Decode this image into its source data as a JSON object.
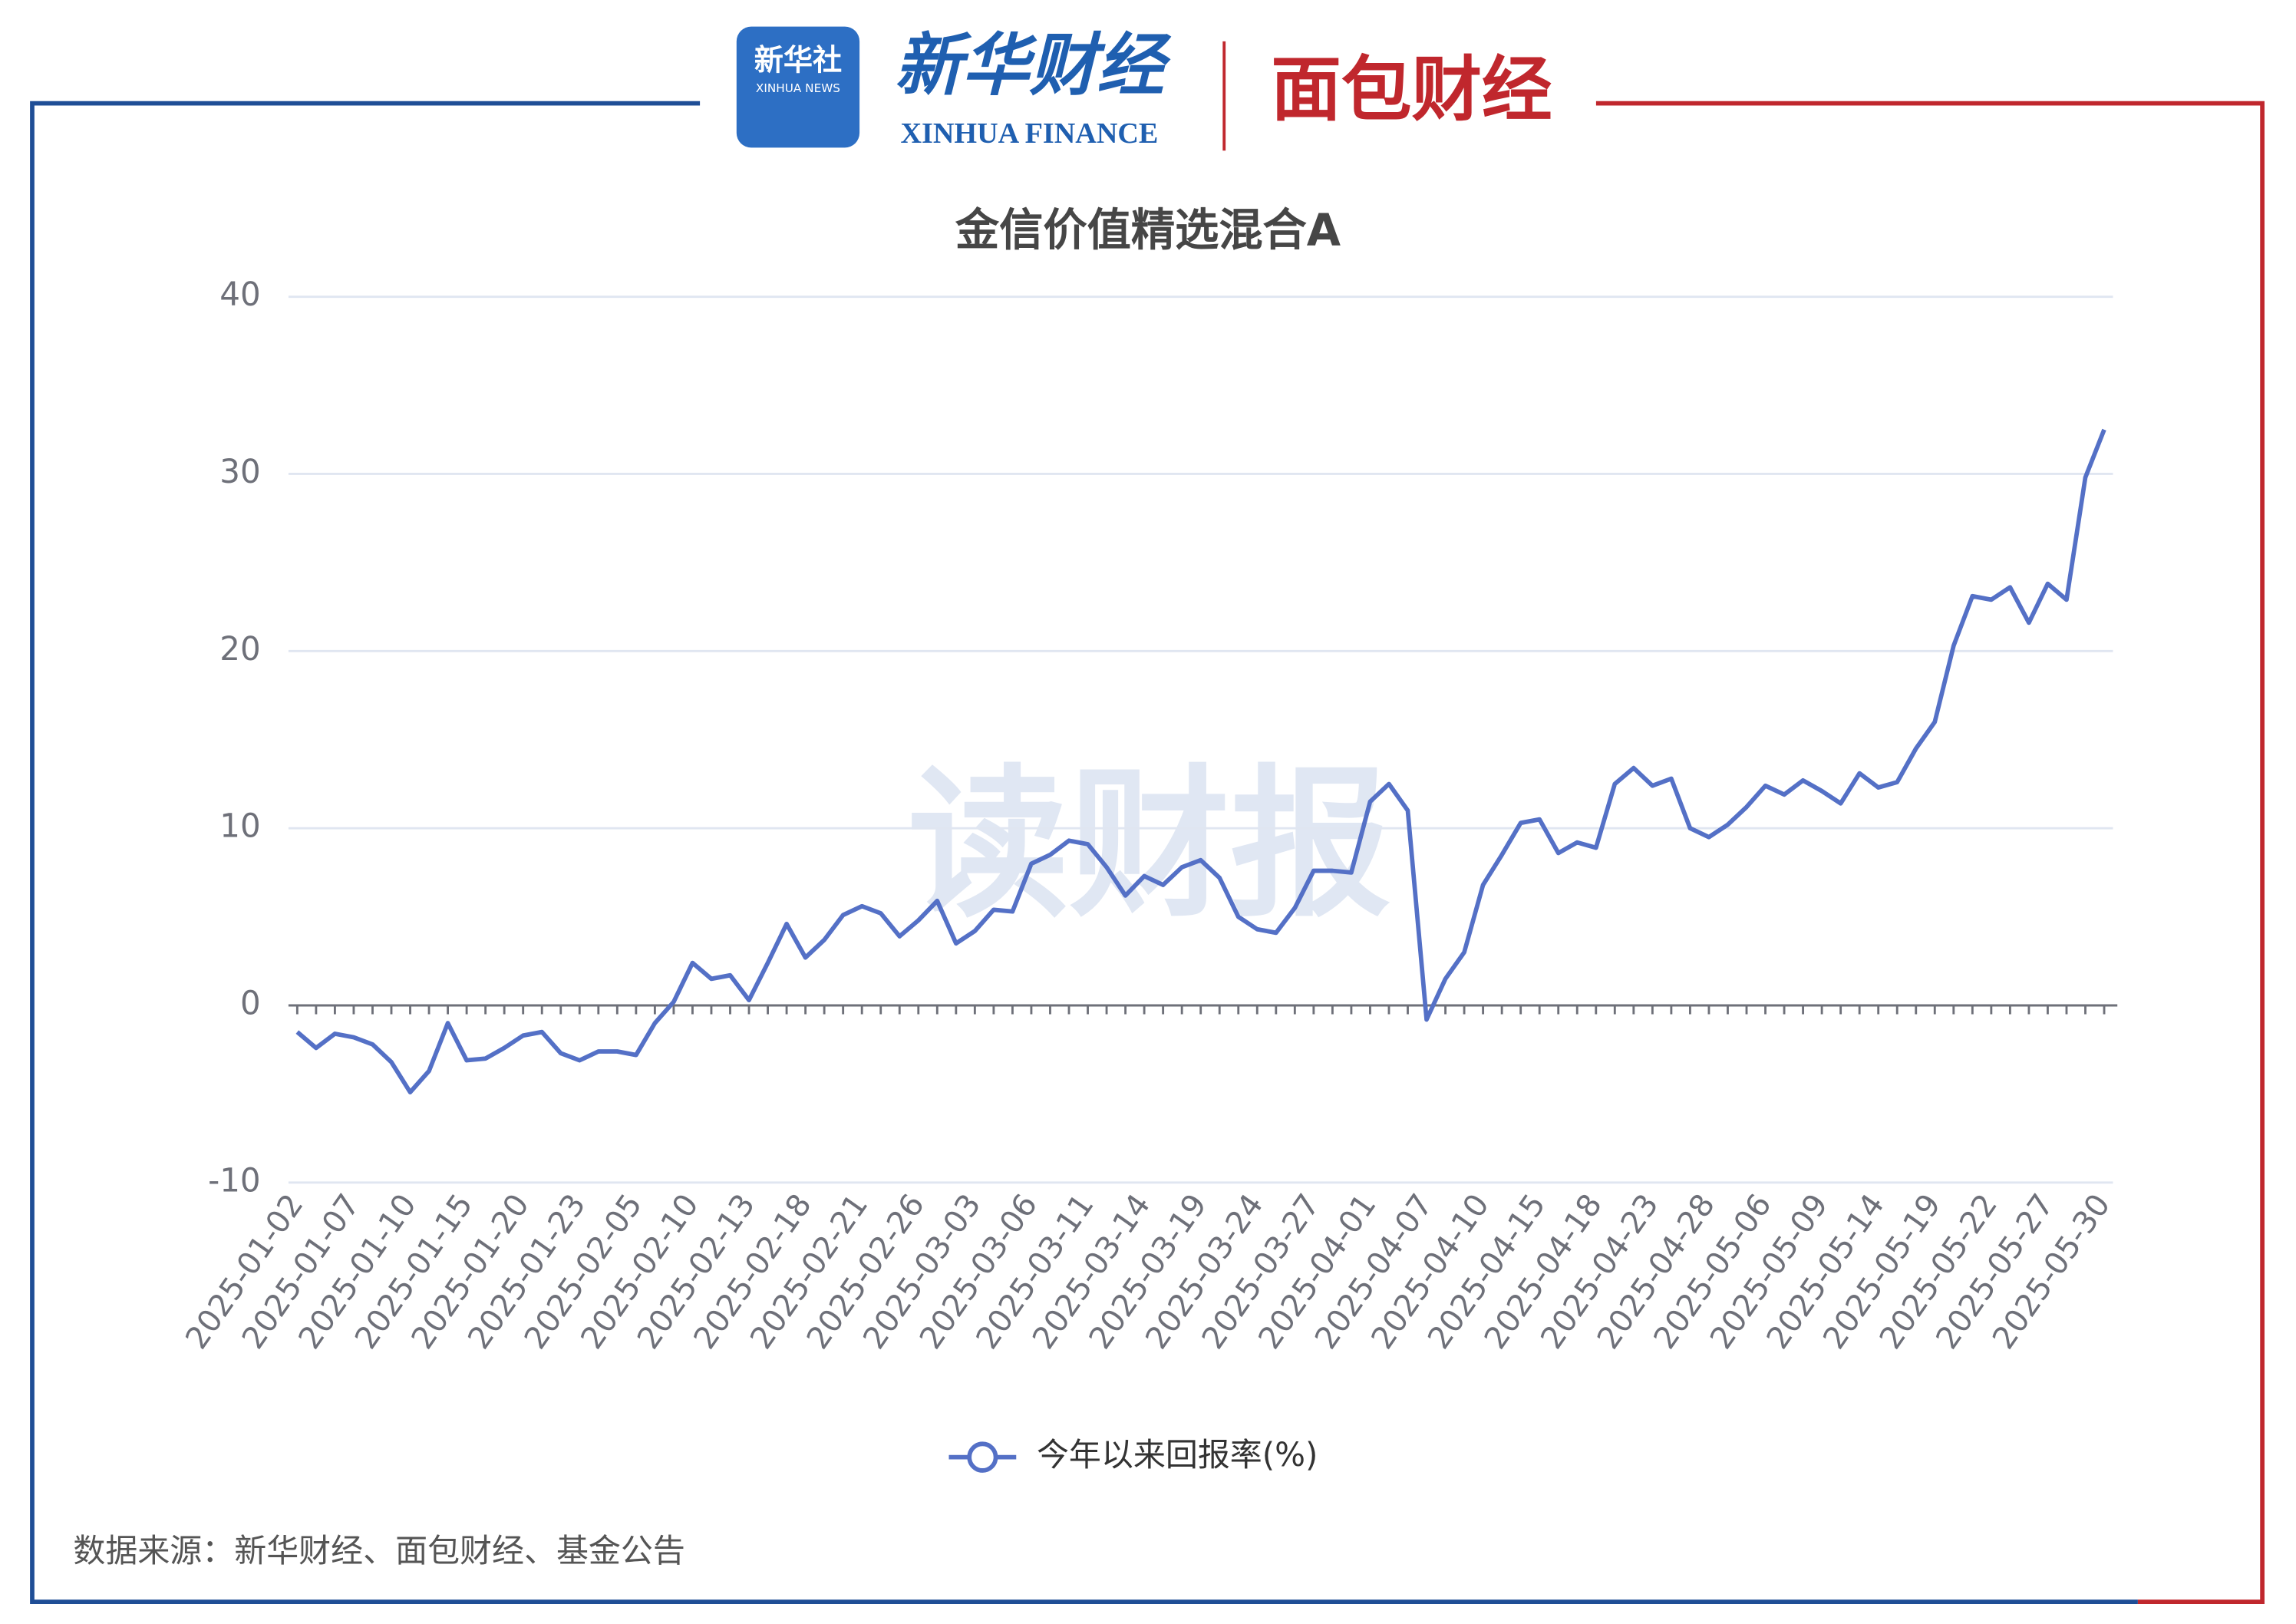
{
  "header": {
    "logo_cn": "新华社",
    "logo_en": "XINHUA NEWS",
    "brand_cn": "新华财经",
    "brand_en": "XINHUA FINANCE",
    "partner": "面包财经"
  },
  "watermark": "读财报",
  "footer": "数据来源：新华财经、面包财经、基金公告",
  "chart_data": {
    "type": "line",
    "title": "金信价值精选混合A",
    "categories": [
      "2025-01-02",
      null,
      null,
      "2025-01-07",
      null,
      null,
      "2025-01-10",
      null,
      null,
      "2025-01-15",
      null,
      null,
      "2025-01-20",
      null,
      null,
      "2025-01-23",
      null,
      null,
      "2025-02-05",
      null,
      null,
      "2025-02-10",
      null,
      null,
      "2025-02-13",
      null,
      null,
      "2025-02-18",
      null,
      null,
      "2025-02-21",
      null,
      null,
      "2025-02-26",
      null,
      null,
      "2025-03-03",
      null,
      null,
      "2025-03-06",
      null,
      null,
      "2025-03-11",
      null,
      null,
      "2025-03-14",
      null,
      null,
      "2025-03-19",
      null,
      null,
      "2025-03-24",
      null,
      null,
      "2025-03-27",
      null,
      null,
      "2025-04-01",
      null,
      null,
      "2025-04-07",
      null,
      null,
      "2025-04-10",
      null,
      null,
      "2025-04-15",
      null,
      null,
      "2025-04-18",
      null,
      null,
      "2025-04-23",
      null,
      null,
      "2025-04-28",
      null,
      null,
      "2025-05-06",
      null,
      null,
      "2025-05-09",
      null,
      null,
      "2025-05-14",
      null,
      null,
      "2025-05-19",
      null,
      null,
      "2025-05-22",
      null,
      null,
      "2025-05-27",
      null,
      null,
      "2025-05-30"
    ],
    "series": [
      {
        "name": "今年以来回报率(%)",
        "color": "#5470c6",
        "values": [
          -1.5,
          -2.4,
          -1.6,
          -1.8,
          -2.2,
          -3.2,
          -4.9,
          -3.7,
          -1.0,
          -3.1,
          -3.0,
          -2.4,
          -1.7,
          -1.5,
          -2.7,
          -3.1,
          -2.6,
          -2.6,
          -2.8,
          -1.0,
          0.2,
          2.4,
          1.5,
          1.7,
          0.3,
          2.4,
          4.6,
          2.7,
          3.7,
          5.1,
          5.6,
          5.2,
          3.9,
          4.8,
          5.9,
          3.5,
          4.2,
          5.4,
          5.3,
          8.0,
          8.5,
          9.3,
          9.1,
          7.8,
          6.2,
          7.3,
          6.8,
          7.8,
          8.2,
          7.2,
          5.0,
          4.3,
          4.1,
          5.5,
          7.6,
          7.6,
          7.5,
          11.5,
          12.5,
          11.0,
          -0.8,
          1.5,
          3.0,
          6.8,
          8.5,
          10.3,
          10.5,
          8.6,
          9.2,
          8.9,
          12.5,
          13.4,
          12.4,
          12.8,
          10.0,
          9.5,
          10.2,
          11.2,
          12.4,
          11.9,
          12.7,
          12.1,
          11.4,
          13.1,
          12.3,
          12.6,
          14.5,
          16.0,
          20.3,
          23.1,
          22.9,
          23.6,
          21.6,
          23.8,
          22.9,
          29.8,
          32.5
        ]
      }
    ],
    "ylim": [
      -10,
      40
    ],
    "yticks": [
      -10,
      0,
      10,
      20,
      30,
      40
    ],
    "grid": true
  }
}
